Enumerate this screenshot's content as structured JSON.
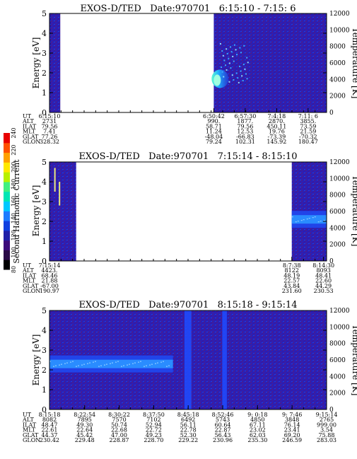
{
  "colorbar": {
    "label": "Second Harmonic Current",
    "ticks": [
      "80",
      "100",
      "120",
      "140",
      "160",
      "180",
      "200",
      "220",
      "240"
    ],
    "colors": [
      "#000000",
      "#2a0a46",
      "#3b0a7a",
      "#2020a8",
      "#1040e0",
      "#1e7cff",
      "#00c8ff",
      "#00e6b4",
      "#40f080",
      "#b8f000",
      "#ffe800",
      "#ffa000",
      "#ff5000",
      "#e80000"
    ]
  },
  "chart_data": [
    {
      "type": "heatmap",
      "title": "EXOS-D/TED   Date:970701   6:15:10 - 7:15: 6",
      "ylabel": "Energy [eV]",
      "y2label": "Temperature [K]",
      "ylim": [
        0,
        5
      ],
      "y_ticks": [
        "0",
        "1",
        "2",
        "3",
        "4",
        "5"
      ],
      "y2lim": [
        0,
        12000
      ],
      "y2_ticks": [
        "0",
        "2000",
        "4000",
        "6000",
        "8000",
        "10000",
        "12000"
      ],
      "time_range": [
        "6:15:10",
        "7:15: 6"
      ],
      "data_segments": [
        [
          "6:15:10",
          "6:17:30"
        ],
        [
          "6:50:42",
          "7:15: 6"
        ]
      ],
      "features": [
        {
          "name": "bright-blob",
          "time": "6:50:50",
          "energy": 1.7,
          "level": "cyan"
        },
        {
          "name": "scattered-points",
          "time_range": [
            "6:52:00",
            "6:58:00"
          ],
          "energy_range": [
            1.5,
            3.5
          ],
          "level": "lightblue"
        }
      ],
      "row_labels": [
        "UT",
        "ALT",
        "ILAT",
        "MLT",
        "GLAT",
        "GLON"
      ],
      "columns": [
        {
          "time": "6:15:10",
          "values": [
            "6:15:10",
            "2731",
            "79.56",
            "7.41",
            "77.26",
            "328.32"
          ]
        },
        {
          "time": "6:50:42",
          "values": [
            "6:50:42",
            "990.",
            "58.71",
            "11.24",
            "-48.04",
            "79.24"
          ]
        },
        {
          "time": "6:57:30",
          "values": [
            "6:57:30",
            "1877.",
            "79.56",
            "12.53",
            "-66.83",
            "102.31"
          ]
        },
        {
          "time": "7:4:18",
          "values": [
            "7:4:18",
            "2870.",
            "450.11",
            "19.76",
            "-73.39",
            "145.92"
          ]
        },
        {
          "time": "7:11: 6",
          "values": [
            "7:11: 6",
            "3855.",
            "73.59",
            "21.59",
            "-70.32",
            "180.47"
          ]
        }
      ]
    },
    {
      "type": "heatmap",
      "title": "EXOS-D/TED   Date:970701   7:15:14 - 8:15:10",
      "ylabel": "Energy [eV]",
      "y2label": "Temperature [K]",
      "ylim": [
        0,
        5
      ],
      "y_ticks": [
        "0",
        "1",
        "2",
        "3",
        "4",
        "5"
      ],
      "y2lim": [
        0,
        12000
      ],
      "y2_ticks": [
        "0",
        "2000",
        "4000",
        "6000",
        "8000",
        "10000",
        "12000"
      ],
      "time_range": [
        "7:15:14",
        "8:15:10"
      ],
      "data_segments": [
        [
          "7:15:14",
          "7:21:00"
        ],
        [
          "8:7:38",
          "8:15:10"
        ]
      ],
      "features": [
        {
          "name": "band",
          "time_range": [
            "8:7:38",
            "8:15:10"
          ],
          "energy": 2.1,
          "level": "lightblue"
        },
        {
          "name": "vertical-streak",
          "time": "7:16:15",
          "energy_range": [
            3.5,
            4.7
          ],
          "level": "yellow"
        },
        {
          "name": "vertical-streak",
          "time": "7:17:15",
          "energy_range": [
            2.8,
            4.0
          ],
          "level": "yellow"
        }
      ],
      "row_labels": [
        "UT",
        "ALT",
        "ILAT",
        "MLT",
        "GLAT",
        "GLON"
      ],
      "columns": [
        {
          "time": "7:15:14",
          "values": [
            "7:15:14",
            "4423.",
            "68.46",
            "21.88",
            "-67.00",
            "190.97"
          ]
        },
        {
          "time": "8:7:38",
          "values": [
            "8:7:38",
            "8122",
            "48.19",
            "22.57",
            "43.84",
            "231.60"
          ]
        },
        {
          "time": "8:14:30",
          "values": [
            "8:14:30",
            "8093",
            "48.41",
            "22.60",
            "44.29",
            "230.53"
          ]
        }
      ]
    },
    {
      "type": "heatmap",
      "title": "EXOS-D/TED   Date:970701   8:15:18 - 9:15:14",
      "ylabel": "Energy [eV]",
      "y2label": "Temperature [K]",
      "ylim": [
        0,
        5
      ],
      "y_ticks": [
        "0",
        "1",
        "2",
        "3",
        "4",
        "5"
      ],
      "y2lim": [
        0,
        12000
      ],
      "y2_ticks": [
        "0",
        "2000",
        "4000",
        "6000",
        "8000",
        "10000",
        "12000"
      ],
      "time_range": [
        "8:15:18",
        "9:15:14"
      ],
      "data_segments": [
        [
          "8:15:18",
          "9:15:14"
        ]
      ],
      "features": [
        {
          "name": "band",
          "time_range": [
            "8:15:18",
            "8:42:00"
          ],
          "energy": 2.3,
          "level": "lightblue"
        },
        {
          "name": "bright-column",
          "time_range": [
            "8:44:30",
            "8:46:00"
          ],
          "energy_range": [
            0,
            5
          ],
          "level": "blue"
        },
        {
          "name": "bright-column",
          "time_range": [
            "8:52:40",
            "8:53:40"
          ],
          "energy_range": [
            0,
            5
          ],
          "level": "blue"
        }
      ],
      "row_labels": [
        "UT",
        "ALT",
        "ILAT",
        "MLT",
        "GLAT",
        "GLON"
      ],
      "columns": [
        {
          "time": "8:15:18",
          "values": [
            "8:15:18",
            "8082",
            "48.47",
            "22.61",
            "44.37",
            "230.42"
          ]
        },
        {
          "time": "8:22:54",
          "values": [
            "8:22:54",
            "7895",
            "49.30",
            "22.64",
            "45.42",
            "229.48"
          ]
        },
        {
          "time": "8:30:22",
          "values": [
            "8:30:22",
            "7570",
            "50.74",
            "22.68",
            "47.00",
            "228.87"
          ]
        },
        {
          "time": "8:37:50",
          "values": [
            "8:37:50",
            "7102",
            "52.94",
            "22.72",
            "49.23",
            "228.70"
          ]
        },
        {
          "time": "8:45:18",
          "values": [
            "8:45:18",
            "6492",
            "56.11",
            "22.78",
            "52.30",
            "229.22"
          ]
        },
        {
          "time": "8:52:46",
          "values": [
            "8:52:46",
            "5743",
            "60.64",
            "22.87",
            "56.43",
            "230.96"
          ]
        },
        {
          "time": "9: 0:18",
          "values": [
            "9: 0:18",
            "4850",
            "67.11",
            "23.02",
            "62.03",
            "235.30"
          ]
        },
        {
          "time": "9: 7:46",
          "values": [
            "9: 7:46",
            "3848",
            "76.14",
            "23.41",
            "69.20",
            "246.59"
          ]
        },
        {
          "time": "9:15:14",
          "values": [
            "9:15:14",
            "2765",
            "999.00",
            "3.54",
            "75.88",
            "283.03"
          ]
        }
      ]
    }
  ]
}
